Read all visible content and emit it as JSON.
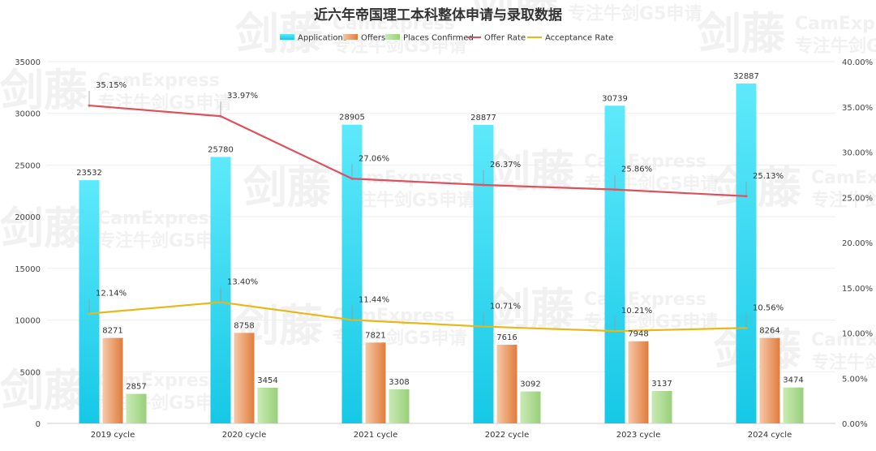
{
  "chart_data": {
    "type": "bar",
    "title": "近六年帝国理工本科整体申请与录取数据",
    "categories": [
      "2019 cycle",
      "2020 cycle",
      "2021 cycle",
      "2022 cycle",
      "2023 cycle",
      "2024 cycle"
    ],
    "series": [
      {
        "name": "Applications",
        "type": "bar",
        "axis": "left",
        "color": "#2fd3ee",
        "values": [
          23532,
          25780,
          28905,
          28877,
          30739,
          32887
        ]
      },
      {
        "name": "Offers",
        "type": "bar",
        "axis": "left",
        "color": "#e98a4f",
        "values": [
          8271,
          8758,
          7821,
          7616,
          7948,
          8264
        ]
      },
      {
        "name": "Places Confirmed",
        "type": "bar",
        "axis": "left",
        "color": "#a8d88c",
        "values": [
          2857,
          3454,
          3308,
          3092,
          3137,
          3474
        ]
      },
      {
        "name": "Offer Rate",
        "type": "line",
        "axis": "right",
        "color": "#e0505c",
        "values": [
          35.15,
          33.97,
          27.06,
          26.37,
          25.86,
          25.13
        ],
        "labels": [
          "35.15%",
          "33.97%",
          "27.06%",
          "26.37%",
          "25.86%",
          "25.13%"
        ]
      },
      {
        "name": "Acceptance Rate",
        "type": "line",
        "axis": "right",
        "color": "#e8b817",
        "values": [
          12.14,
          13.4,
          11.44,
          10.71,
          10.21,
          10.56
        ],
        "labels": [
          "12.14%",
          "13.40%",
          "11.44%",
          "10.71%",
          "10.21%",
          "10.56%"
        ]
      }
    ],
    "y_left": {
      "ylim": [
        0,
        35000
      ],
      "ticks": [
        "0",
        "5000",
        "10000",
        "15000",
        "20000",
        "25000",
        "30000",
        "35000"
      ]
    },
    "y_right": {
      "ylim": [
        0,
        40
      ],
      "ticks": [
        "0.00%",
        "5.00%",
        "10.00%",
        "15.00%",
        "20.00%",
        "25.00%",
        "30.00%",
        "35.00%",
        "40.00%"
      ]
    },
    "legend_position": "top",
    "grid": true,
    "watermark": {
      "brand": "剑藤",
      "text": "CamExpress",
      "slogan": "专注牛剑G5申请"
    }
  }
}
